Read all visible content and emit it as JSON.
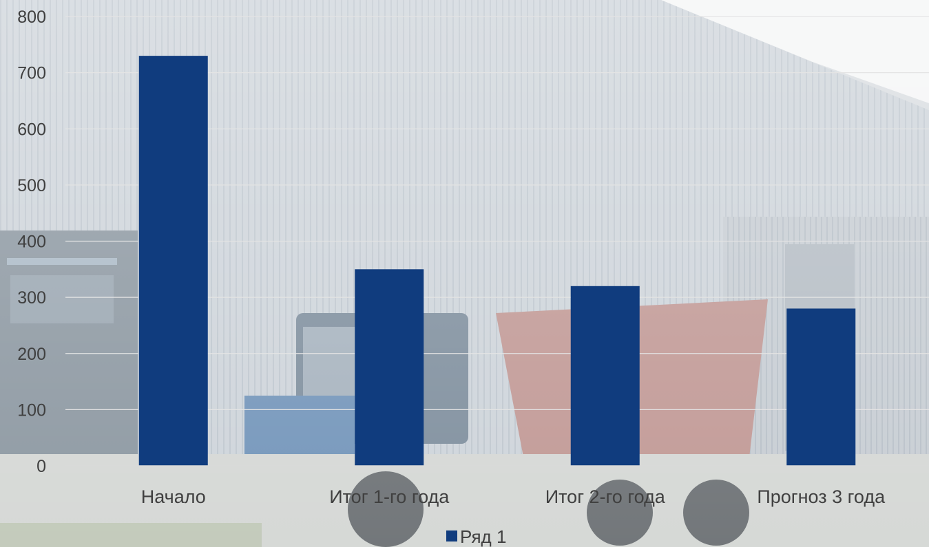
{
  "chart_data": {
    "type": "bar",
    "categories": [
      "Начало",
      "Итог 1-го года",
      "Итог 2-го года",
      "Прогноз 3 года"
    ],
    "series": [
      {
        "name": "Ряд 1",
        "values": [
          730,
          350,
          320,
          280
        ],
        "color": "#103c7e"
      }
    ],
    "ylim": [
      0,
      800
    ],
    "yticks": [
      0,
      100,
      200,
      300,
      400,
      500,
      600,
      700,
      800
    ],
    "grid": true,
    "legend_position": "bottom"
  },
  "background": {
    "description_icon": "farm-building-photo",
    "sky": "#f2f3f4",
    "wall": "#c4cbd2"
  }
}
